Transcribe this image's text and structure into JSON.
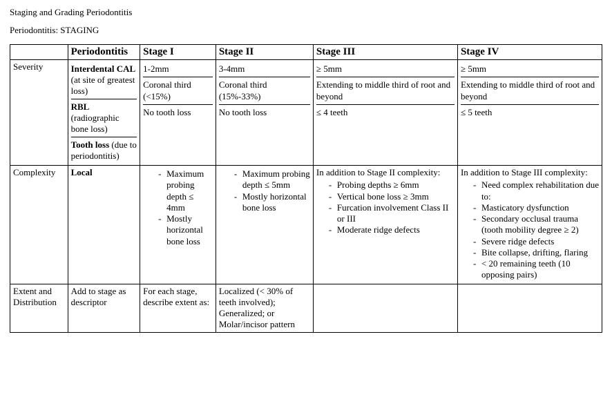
{
  "page": {
    "title": "Staging and Grading Periodontitis",
    "subtitle": "Periodontitis: STAGING"
  },
  "headers": {
    "c0": "",
    "c1": "Periodontitis",
    "c2": "Stage I",
    "c3": "Stage II",
    "c4": "Stage III",
    "c5": "Stage IV"
  },
  "severity": {
    "category": "Severity",
    "rows": {
      "cal": {
        "label_bold": "Interdental CAL",
        "label_note": " (at site of greatest loss)",
        "s1": "1-2mm",
        "s2": "3-4mm",
        "s3": "≥ 5mm",
        "s4": "≥ 5mm"
      },
      "rbl": {
        "label_bold": "RBL",
        "label_note": " (radiographic bone loss)",
        "s1": "Coronal third (<15%)",
        "s2": "Coronal third (15%-33%)",
        "s3": "Extending to middle third of root and beyond",
        "s4": "Extending to middle third of root and beyond"
      },
      "tooth": {
        "label_bold": "Tooth loss",
        "label_note": " (due to periodontitis)",
        "s1": "No tooth loss",
        "s2": "No tooth loss",
        "s3": "≤ 4 teeth",
        "s4": "≤ 5 teeth"
      }
    }
  },
  "complexity": {
    "category": "Complexity",
    "label": "Local",
    "s1": {
      "items": [
        "Maximum probing depth ≤ 4mm",
        "Mostly horizontal bone loss"
      ]
    },
    "s2": {
      "items": [
        "Maximum probing depth ≤ 5mm",
        "Mostly horizontal bone loss"
      ]
    },
    "s3": {
      "intro": "In addition to Stage II complexity:",
      "items": [
        "Probing depths ≥ 6mm",
        "Vertical bone loss ≥ 3mm",
        "Furcation involvement Class II or III",
        "Moderate ridge defects"
      ]
    },
    "s4": {
      "intro": "In addition to Stage III complexity:",
      "lead": "Need complex rehabilitation due to:",
      "items": [
        "Masticatory dysfunction",
        "Secondary occlusal trauma (tooth mobility degree ≥ 2)",
        "Severe ridge defects",
        "Bite collapse, drifting, flaring",
        "< 20 remaining teeth (10 opposing pairs)"
      ]
    }
  },
  "extent": {
    "category": "Extent and Distribution",
    "label": "Add to stage as descriptor",
    "s1": "For each stage, describe extent as:",
    "s2": "Localized (< 30% of teeth involved); Generalized; or Molar/incisor pattern",
    "s3": "",
    "s4": ""
  }
}
